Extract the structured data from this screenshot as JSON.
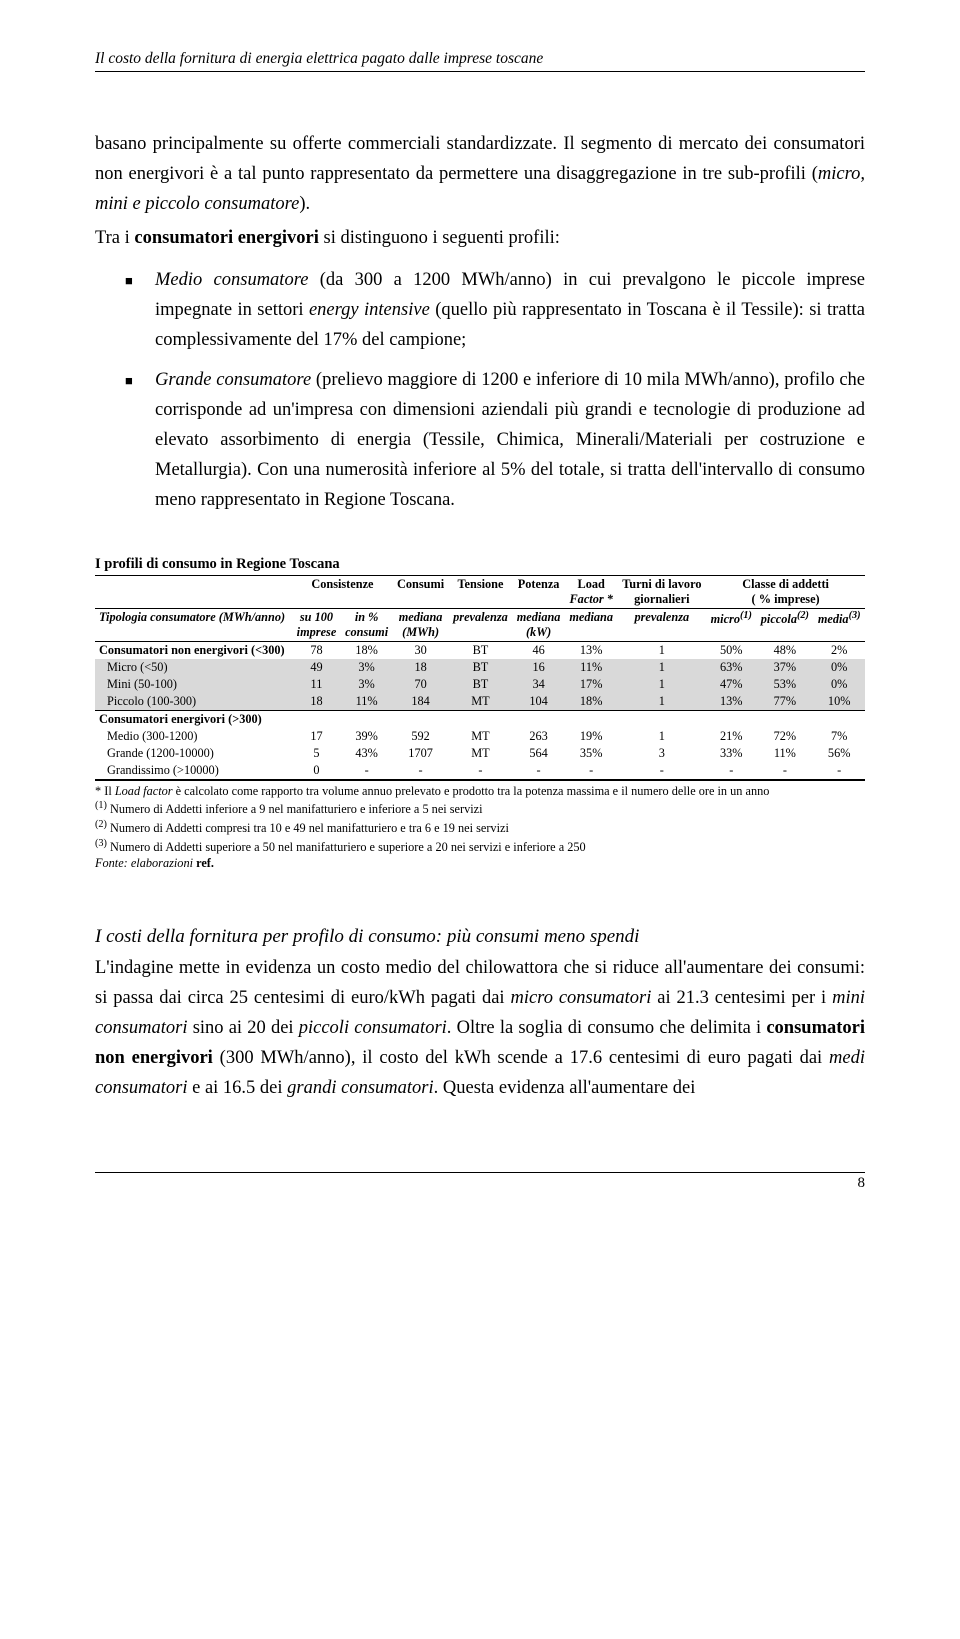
{
  "header": "Il costo della fornitura di energia elettrica pagato dalle imprese toscane",
  "para1_a": "basano principalmente su offerte commerciali standardizzate. Il segmento di mercato dei consumatori non energivori è a tal punto rappresentato da permettere una disaggregazione in tre sub-profili (",
  "para1_b": "micro, mini e piccolo consumatore",
  "para1_c": ").",
  "para2_a": "Tra i ",
  "para2_b": "consumatori energivori",
  "para2_c": " si distinguono i seguenti profili:",
  "bullet1_a": "Medio consumatore",
  "bullet1_b": " (da 300 a 1200 MWh/anno) in cui prevalgono le piccole imprese impegnate in settori ",
  "bullet1_c": "energy intensive",
  "bullet1_d": " (quello più rappresentato in Toscana è il Tessile): si tratta complessivamente del 17% del campione;",
  "bullet2_a": "Grande consumatore",
  "bullet2_b": " (prelievo maggiore di 1200 e inferiore di 10 mila MWh/anno), profilo che corrisponde ad un'impresa con dimensioni aziendali più grandi e tecnologie di produzione ad elevato assorbimento di energia (Tessile, Chimica, Minerali/Materiali per costruzione e Metallurgia). Con una numerosità inferiore al 5% del totale, si tratta dell'intervallo di consumo meno rappresentato in Regione Toscana.",
  "table_title": "I profili di consumo in Regione Toscana",
  "h1": {
    "consistenze": "Consistenze",
    "consumi": "Consumi",
    "tensione": "Tensione",
    "potenza": "Potenza",
    "load": "Load",
    "loadstar": "Factor *",
    "turni": "Turni di lavoro",
    "turni2": "giornalieri",
    "classe": "Classe di addetti",
    "classe2": "( % imprese)"
  },
  "h2": {
    "tipologia": "Tipologia consumatore (MWh/anno)",
    "su100_a": "su 100",
    "su100_b": "imprese",
    "inpct_a": "in %",
    "inpct_b": "consumi",
    "mediana_a": "mediana",
    "mediana_b": "(MWh)",
    "prev": "prevalenza",
    "pot_a": "mediana",
    "pot_b": "(kW)",
    "lf": "mediana",
    "turni": "prevalenza",
    "micro": "micro",
    "micro_s": "(1)",
    "piccola": "piccola",
    "piccola_s": "(2)",
    "media": "media",
    "media_s": "(3)"
  },
  "rows": [
    {
      "label": "Consumatori non energivori (<300)",
      "c": [
        "78",
        "18%",
        "30",
        "BT",
        "46",
        "13%",
        "1",
        "50%",
        "48%",
        "2%"
      ],
      "bold": true
    },
    {
      "label": "Micro (<50)",
      "c": [
        "49",
        "3%",
        "18",
        "BT",
        "16",
        "11%",
        "1",
        "63%",
        "37%",
        "0%"
      ],
      "grey": true
    },
    {
      "label": "Mini (50-100)",
      "c": [
        "11",
        "3%",
        "70",
        "BT",
        "34",
        "17%",
        "1",
        "47%",
        "53%",
        "0%"
      ],
      "grey": true
    },
    {
      "label": "Piccolo (100-300)",
      "c": [
        "18",
        "11%",
        "184",
        "MT",
        "104",
        "18%",
        "1",
        "13%",
        "77%",
        "10%"
      ],
      "grey": true
    }
  ],
  "energivori_header": "Consumatori energivori (>300)",
  "rows2": [
    {
      "label": "Medio (300-1200)",
      "c": [
        "17",
        "39%",
        "592",
        "MT",
        "263",
        "19%",
        "1",
        "21%",
        "72%",
        "7%"
      ]
    },
    {
      "label": "Grande (1200-10000)",
      "c": [
        "5",
        "43%",
        "1707",
        "MT",
        "564",
        "35%",
        "3",
        "33%",
        "11%",
        "56%"
      ]
    },
    {
      "label": "Grandissimo (>10000)",
      "c": [
        "0",
        "-",
        "-",
        "-",
        "-",
        "-",
        "-",
        "-",
        "-",
        "-"
      ]
    }
  ],
  "fn_star_a": "* Il ",
  "fn_star_b": "Load factor",
  "fn_star_c": " è calcolato come rapporto tra volume annuo prelevato e prodotto tra la potenza massima e il numero delle ore in un anno",
  "fn1": " Numero di Addetti inferiore a 9 nel manifatturiero e inferiore a 5 nei servizi",
  "fn2": " Numero di Addetti compresi tra 10 e 49 nel manifatturiero e tra 6 e 19 nei servizi",
  "fn3": " Numero di Addetti superiore a 50 nel manifatturiero e superiore a 20 nei servizi e inferiore a 250",
  "fonte_a": "Fonte: elaborazioni ",
  "fonte_b": "ref.",
  "section2_heading": "I costi della fornitura per profilo di consumo: più consumi meno spendi",
  "section2_1": "L'indagine mette in evidenza un costo medio del chilowattora che si riduce all'aumentare dei consumi: si passa dai circa 25 centesimi di euro/kWh pagati dai ",
  "section2_2": "micro consumatori",
  "section2_3": " ai 21.3 centesimi per i ",
  "section2_4": "mini consumatori",
  "section2_5": " sino ai 20 dei ",
  "section2_6": "piccoli consumatori",
  "section2_7": ". Oltre la soglia di consumo che delimita i ",
  "section2_8": "consumatori non energivori",
  "section2_9": " (300 MWh/anno), il costo del kWh scende a 17.6 centesimi di euro pagati dai ",
  "section2_10": "medi consumatori",
  "section2_11": " e ai 16.5 dei ",
  "section2_12": "grandi consumatori",
  "section2_13": ". Questa evidenza all'aumentare dei",
  "pagenum": "8"
}
